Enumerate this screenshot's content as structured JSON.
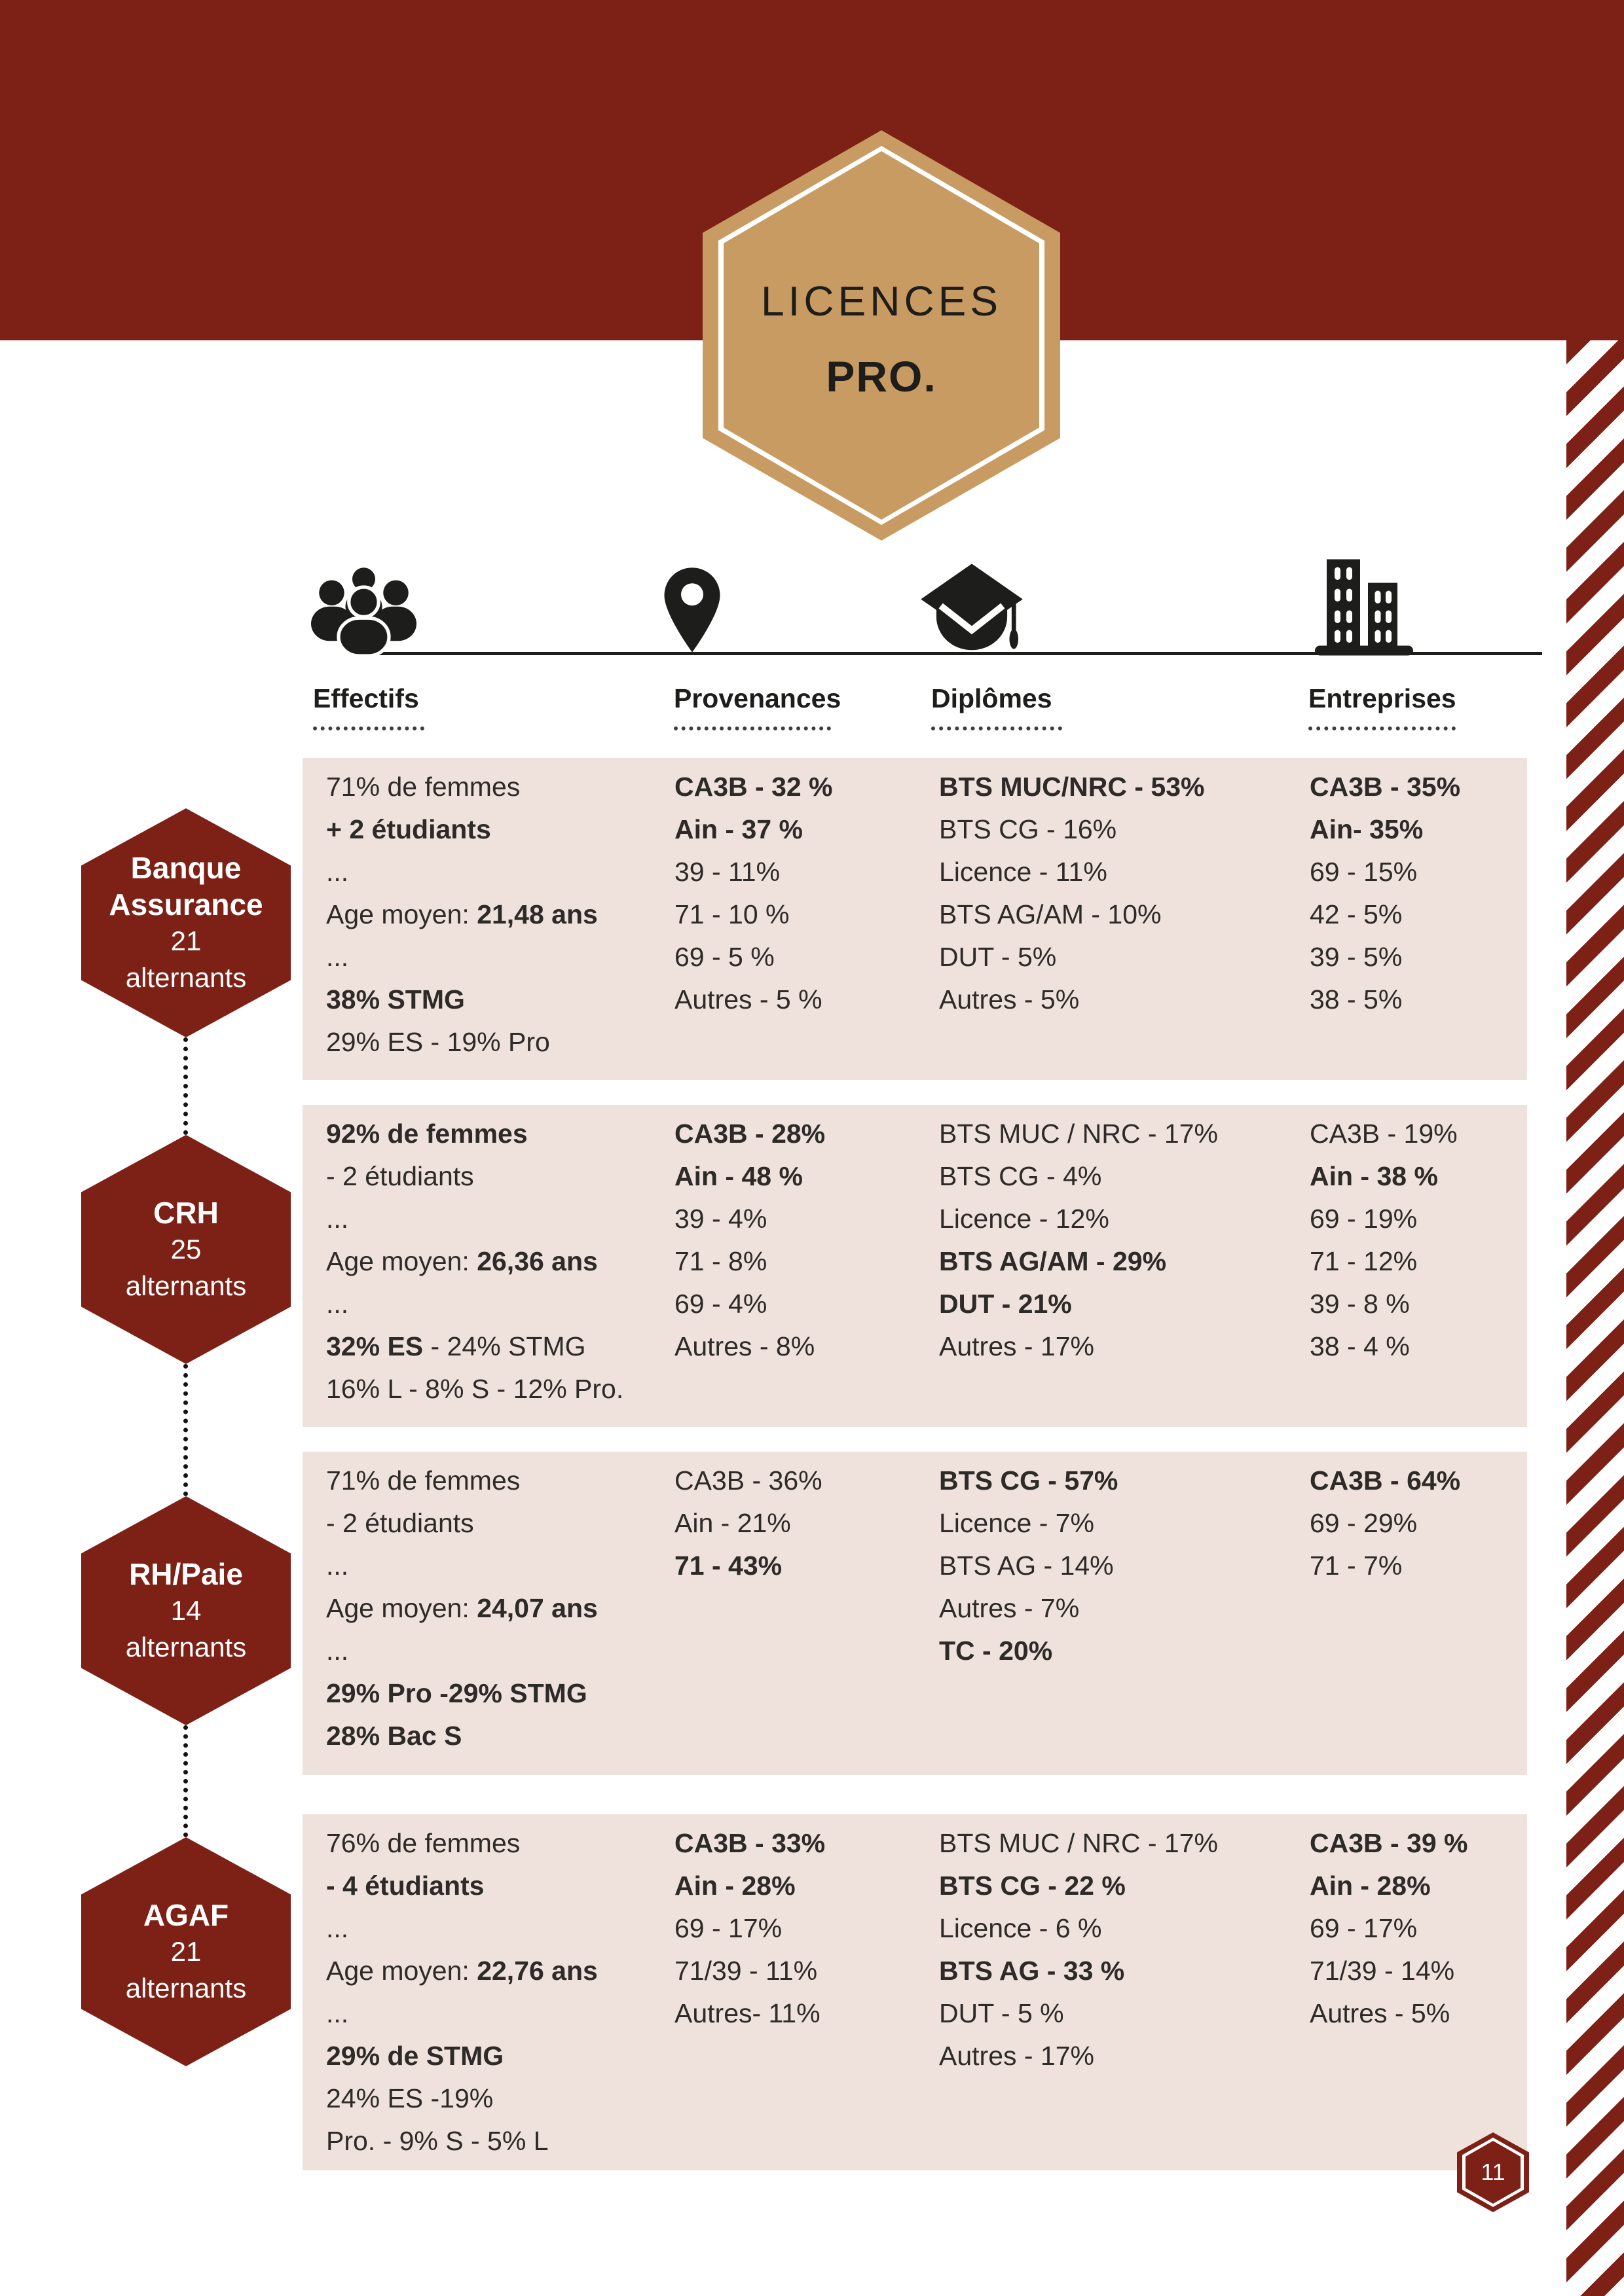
{
  "page_number": "11",
  "title": {
    "line1": "LICENCES",
    "line2": "PRO."
  },
  "colors": {
    "dark_red": "#7D2016",
    "gold": "#C89B63",
    "cell_bg": "#EFE2DC"
  },
  "columns": [
    {
      "label": "Effectifs",
      "icon": "people-icon"
    },
    {
      "label": "Provenances",
      "icon": "map-pin-icon"
    },
    {
      "label": "Diplômes",
      "icon": "graduation-cap-icon"
    },
    {
      "label": "Entreprises",
      "icon": "buildings-icon"
    }
  ],
  "rows": [
    {
      "badge": {
        "title_lines": [
          "Banque",
          "Assurance"
        ],
        "count": "21",
        "suffix": "alternants"
      },
      "cells": {
        "effectifs": [
          [
            {
              "t": "71% de femmes"
            }
          ],
          [
            {
              "t": "+ 2 étudiants",
              "b": true
            }
          ],
          [
            {
              "t": "..."
            }
          ],
          [
            {
              "t": "Age moyen: "
            },
            {
              "t": "21,48 ans",
              "b": true
            }
          ],
          [
            {
              "t": "..."
            }
          ],
          [
            {
              "t": "38% STMG",
              "b": true
            }
          ],
          [
            {
              "t": "29% ES - 19% Pro"
            }
          ]
        ],
        "provenances": [
          [
            {
              "t": "CA3B - 32 %",
              "b": true
            }
          ],
          [
            {
              "t": "Ain - 37 %",
              "b": true
            }
          ],
          [
            {
              "t": "39 - 11%"
            }
          ],
          [
            {
              "t": "71 - 10 %"
            }
          ],
          [
            {
              "t": "69 - 5 %"
            }
          ],
          [
            {
              "t": "Autres - 5 %"
            }
          ]
        ],
        "diplomes": [
          [
            {
              "t": "BTS MUC/NRC - 53%",
              "b": true
            }
          ],
          [
            {
              "t": "BTS CG - 16%"
            }
          ],
          [
            {
              "t": "Licence - 11%"
            }
          ],
          [
            {
              "t": "BTS AG/AM - 10%"
            }
          ],
          [
            {
              "t": "DUT - 5%"
            }
          ],
          [
            {
              "t": "Autres - 5%"
            }
          ]
        ],
        "entreprises": [
          [
            {
              "t": "CA3B - 35%",
              "b": true
            }
          ],
          [
            {
              "t": "Ain- 35%",
              "b": true
            }
          ],
          [
            {
              "t": "69 - 15%"
            }
          ],
          [
            {
              "t": "42 - 5%"
            }
          ],
          [
            {
              "t": "39 - 5%"
            }
          ],
          [
            {
              "t": "38 - 5%"
            }
          ]
        ]
      }
    },
    {
      "badge": {
        "title_lines": [
          "CRH"
        ],
        "count": "25",
        "suffix": "alternants"
      },
      "cells": {
        "effectifs": [
          [
            {
              "t": "92% de femmes",
              "b": true
            }
          ],
          [
            {
              "t": "- 2 étudiants"
            }
          ],
          [
            {
              "t": "..."
            }
          ],
          [
            {
              "t": "Age moyen: "
            },
            {
              "t": "26,36 ans",
              "b": true
            }
          ],
          [
            {
              "t": "..."
            }
          ],
          [
            {
              "t": "32% ES",
              "b": true
            },
            {
              "t": " - 24% STMG"
            }
          ],
          [
            {
              "t": "16% L - 8% S - 12% Pro."
            }
          ]
        ],
        "provenances": [
          [
            {
              "t": "CA3B - 28%",
              "b": true
            }
          ],
          [
            {
              "t": "Ain - 48 %",
              "b": true
            }
          ],
          [
            {
              "t": "39 - 4%"
            }
          ],
          [
            {
              "t": "71 - 8%"
            }
          ],
          [
            {
              "t": "69 - 4%"
            }
          ],
          [
            {
              "t": "Autres - 8%"
            }
          ]
        ],
        "diplomes": [
          [
            {
              "t": "BTS MUC / NRC - 17%"
            }
          ],
          [
            {
              "t": "BTS CG - 4%"
            }
          ],
          [
            {
              "t": "Licence - 12%"
            }
          ],
          [
            {
              "t": "BTS AG/AM - 29%",
              "b": true
            }
          ],
          [
            {
              "t": "DUT - 21%",
              "b": true
            }
          ],
          [
            {
              "t": "Autres - 17%"
            }
          ]
        ],
        "entreprises": [
          [
            {
              "t": "CA3B - 19%"
            }
          ],
          [
            {
              "t": "Ain - 38 %",
              "b": true
            }
          ],
          [
            {
              "t": "69 - 19%"
            }
          ],
          [
            {
              "t": "71 - 12%"
            }
          ],
          [
            {
              "t": "39 - 8 %"
            }
          ],
          [
            {
              "t": "38 - 4 %"
            }
          ]
        ]
      }
    },
    {
      "badge": {
        "title_lines": [
          "RH/Paie"
        ],
        "count": "14",
        "suffix": "alternants"
      },
      "cells": {
        "effectifs": [
          [
            {
              "t": "71% de femmes"
            }
          ],
          [
            {
              "t": "- 2 étudiants"
            }
          ],
          [
            {
              "t": "..."
            }
          ],
          [
            {
              "t": "Age moyen: "
            },
            {
              "t": "24,07 ans",
              "b": true
            }
          ],
          [
            {
              "t": "..."
            }
          ],
          [
            {
              "t": "29% Pro -29% STMG",
              "b": true
            }
          ],
          [
            {
              "t": "28% Bac S",
              "b": true
            }
          ]
        ],
        "provenances": [
          [
            {
              "t": "CA3B - 36%"
            }
          ],
          [
            {
              "t": "Ain - 21%"
            }
          ],
          [
            {
              "t": "71 - 43%",
              "b": true
            }
          ]
        ],
        "diplomes": [
          [
            {
              "t": "BTS CG - 57%",
              "b": true
            }
          ],
          [
            {
              "t": "Licence - 7%"
            }
          ],
          [
            {
              "t": "BTS AG - 14%"
            }
          ],
          [
            {
              "t": "Autres - 7%"
            }
          ],
          [
            {
              "t": "TC - 20%",
              "b": true
            }
          ]
        ],
        "entreprises": [
          [
            {
              "t": "CA3B - 64%",
              "b": true
            }
          ],
          [
            {
              "t": "69 - 29%"
            }
          ],
          [
            {
              "t": "71 - 7%"
            }
          ]
        ]
      }
    },
    {
      "badge": {
        "title_lines": [
          "AGAF"
        ],
        "count": "21",
        "suffix": "alternants"
      },
      "cells": {
        "effectifs": [
          [
            {
              "t": "76% de femmes"
            }
          ],
          [
            {
              "t": "- 4 étudiants",
              "b": true
            }
          ],
          [
            {
              "t": "..."
            }
          ],
          [
            {
              "t": "Age moyen: "
            },
            {
              "t": "22,76 ans",
              "b": true
            }
          ],
          [
            {
              "t": "..."
            }
          ],
          [
            {
              "t": "29% de STMG",
              "b": true
            }
          ],
          [
            {
              "t": "24% ES -19%"
            }
          ],
          [
            {
              "t": "Pro. - 9% S - 5% L"
            }
          ]
        ],
        "provenances": [
          [
            {
              "t": "CA3B - 33%",
              "b": true
            }
          ],
          [
            {
              "t": "Ain - 28%",
              "b": true
            }
          ],
          [
            {
              "t": "69 - 17%"
            }
          ],
          [
            {
              "t": "71/39 - 11%"
            }
          ],
          [
            {
              "t": "Autres- 11%"
            }
          ]
        ],
        "diplomes": [
          [
            {
              "t": "BTS MUC / NRC - 17%"
            }
          ],
          [
            {
              "t": "BTS CG - 22 %",
              "b": true
            }
          ],
          [
            {
              "t": "Licence - 6 %"
            }
          ],
          [
            {
              "t": "BTS AG - 33 %",
              "b": true
            }
          ],
          [
            {
              "t": "DUT - 5 %"
            }
          ],
          [
            {
              "t": "Autres - 17%"
            }
          ]
        ],
        "entreprises": [
          [
            {
              "t": "CA3B - 39 %",
              "b": true
            }
          ],
          [
            {
              "t": "Ain - 28%",
              "b": true
            }
          ],
          [
            {
              "t": "69 - 17%"
            }
          ],
          [
            {
              "t": "71/39 - 14%"
            }
          ],
          [
            {
              "t": "Autres - 5%"
            }
          ]
        ]
      }
    }
  ]
}
